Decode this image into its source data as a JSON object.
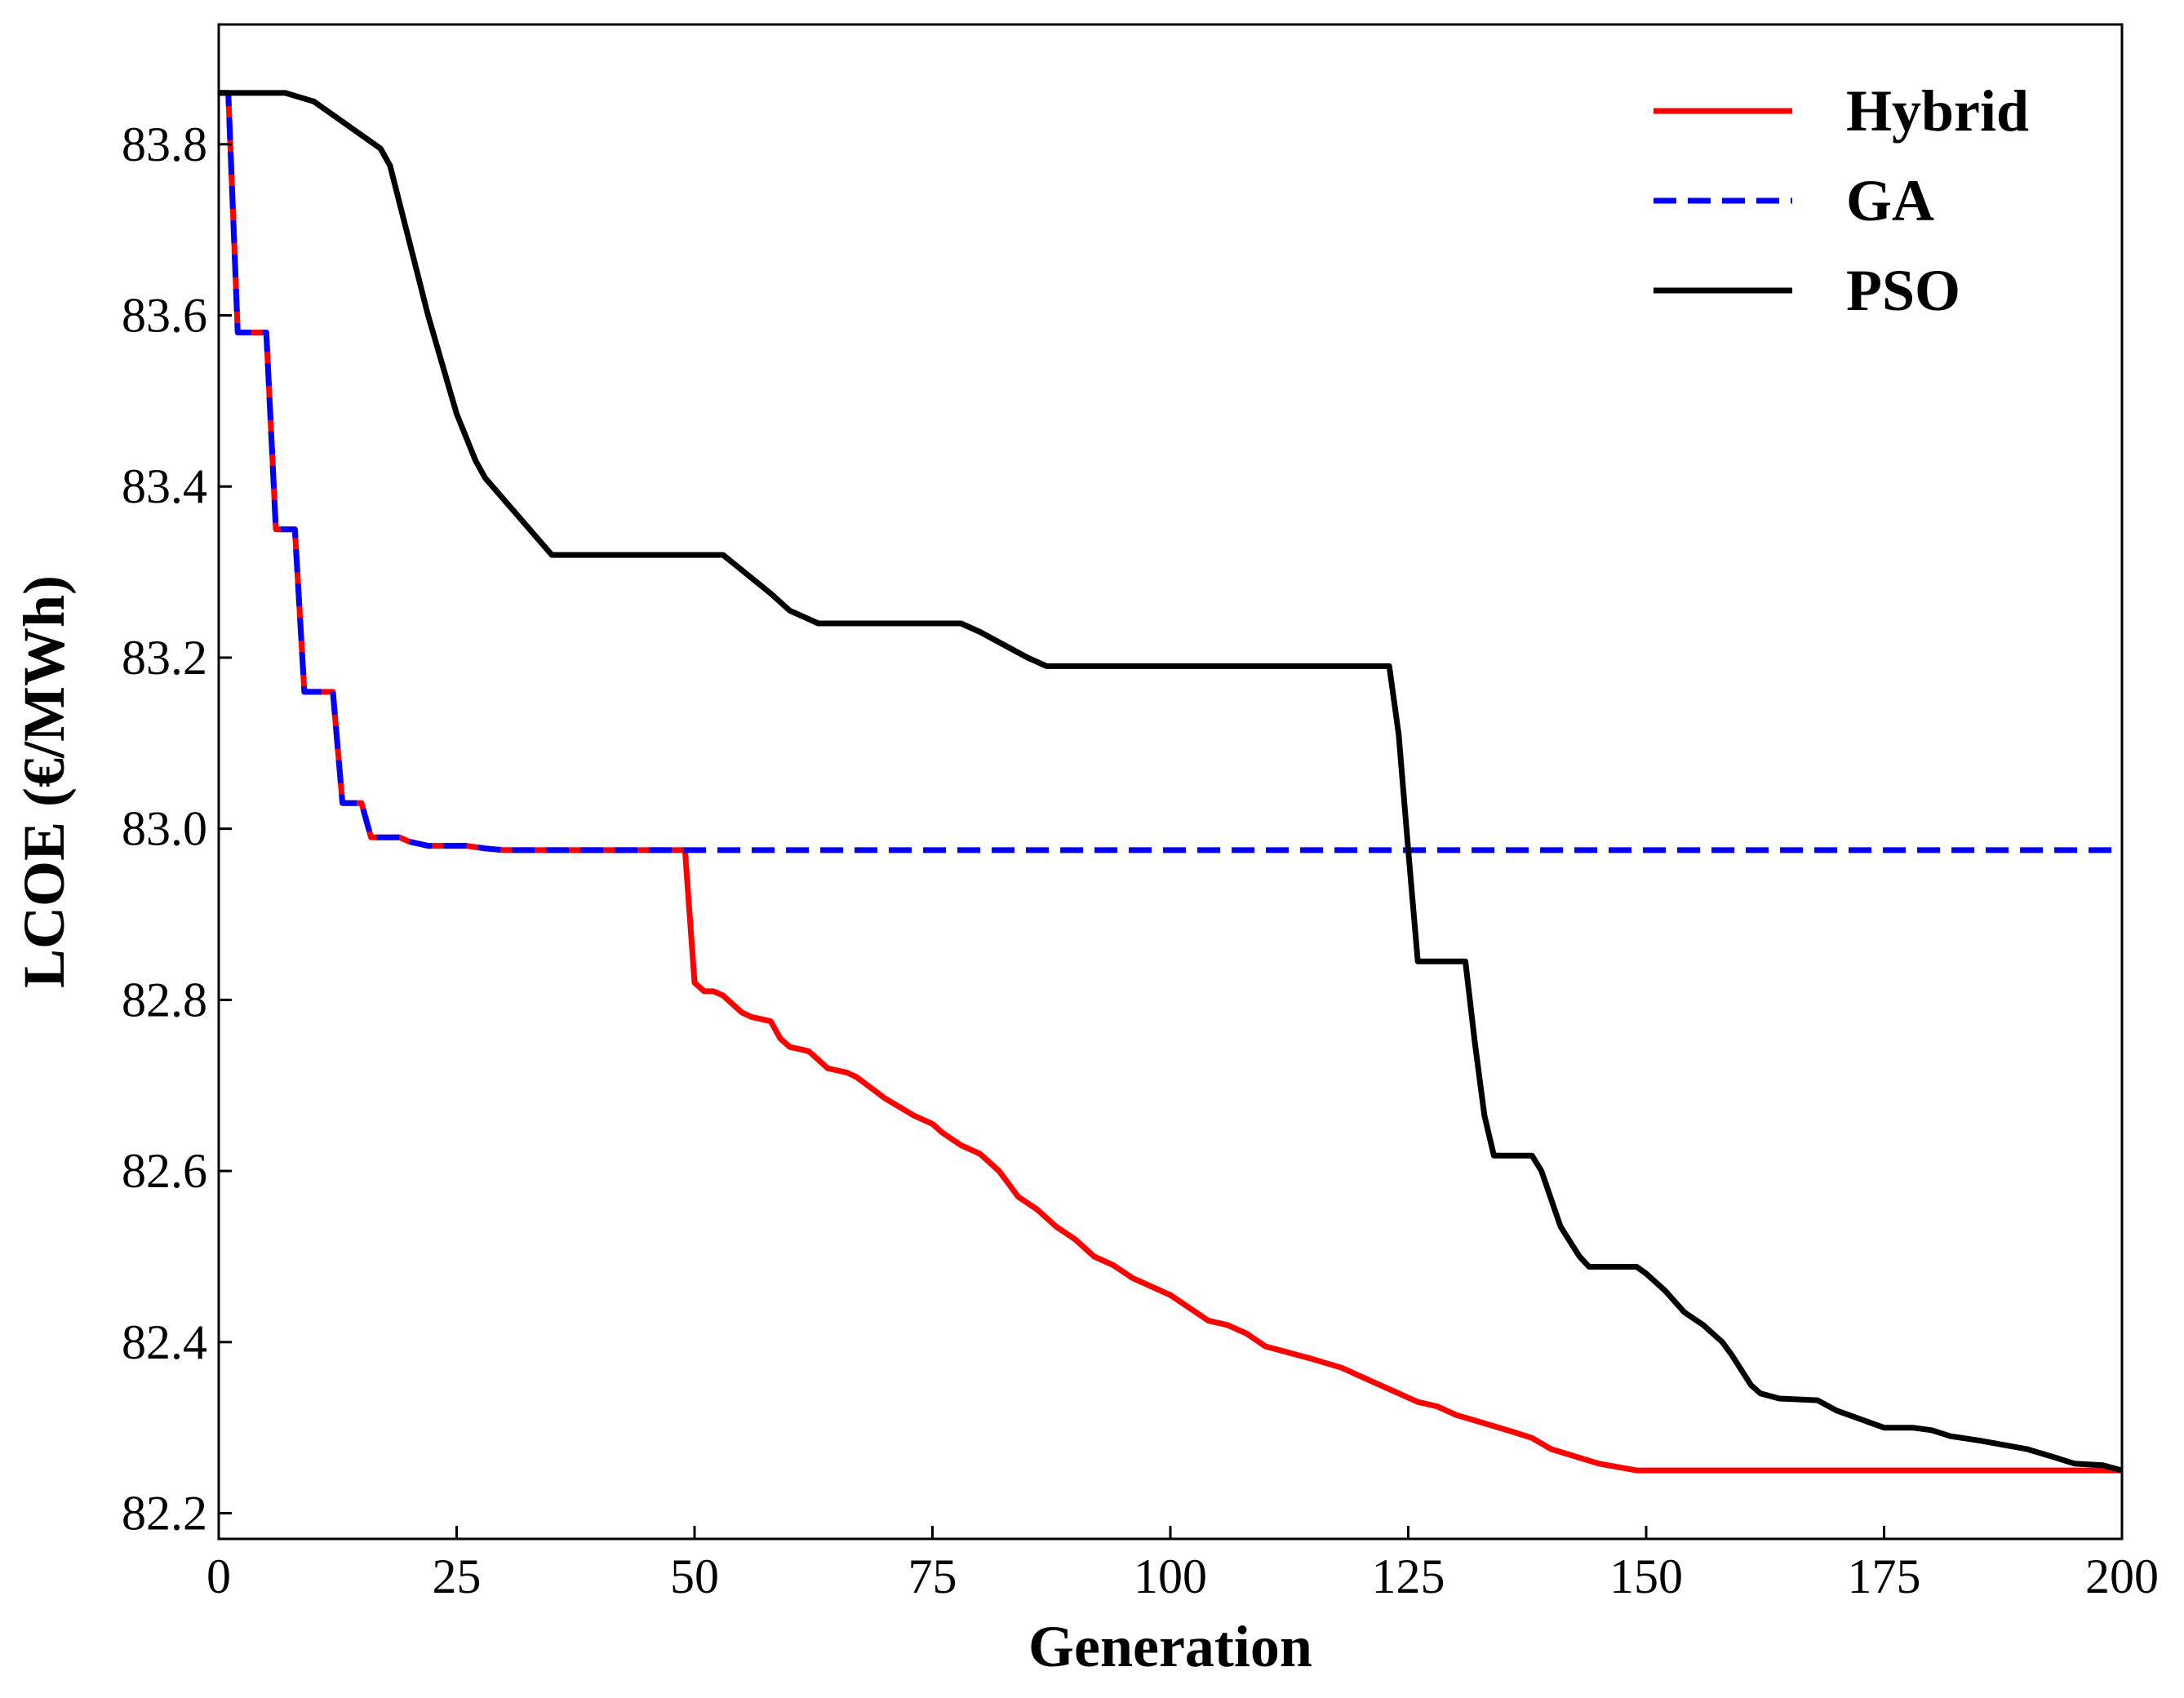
{
  "chart_data": {
    "type": "line",
    "xlabel": "Generation",
    "ylabel": "LCOE (€/MWh)",
    "xlim": [
      0,
      200
    ],
    "ylim": [
      82.17,
      83.94
    ],
    "xticks": [
      0,
      25,
      50,
      75,
      100,
      125,
      150,
      175,
      200
    ],
    "xtick_labels": [
      "0",
      "25",
      "50",
      "75",
      "100",
      "125",
      "150",
      "175",
      "200"
    ],
    "yticks": [
      82.2,
      82.4,
      82.6,
      82.8,
      83.0,
      83.2,
      83.4,
      83.6,
      83.8
    ],
    "ytick_labels": [
      "82.2",
      "82.4",
      "82.6",
      "82.8",
      "83.0",
      "83.2",
      "83.4",
      "83.6",
      "83.8"
    ],
    "grid": false,
    "legend_position": "top-right",
    "colors": {
      "Hybrid": "#ff0000",
      "GA": "#0000ff",
      "PSO": "#000000"
    },
    "series": [
      {
        "name": "Hybrid",
        "style": "solid",
        "points": [
          [
            0,
            83.86
          ],
          [
            1,
            83.86
          ],
          [
            2,
            83.58
          ],
          [
            5,
            83.58
          ],
          [
            6,
            83.35
          ],
          [
            8,
            83.35
          ],
          [
            9,
            83.16
          ],
          [
            12,
            83.16
          ],
          [
            13,
            83.03
          ],
          [
            15,
            83.03
          ],
          [
            16,
            82.99
          ],
          [
            19,
            82.99
          ],
          [
            20,
            82.985
          ],
          [
            22,
            82.98
          ],
          [
            26,
            82.98
          ],
          [
            28,
            82.977
          ],
          [
            30,
            82.975
          ],
          [
            49,
            82.975
          ],
          [
            50,
            82.82
          ],
          [
            51,
            82.81
          ],
          [
            52,
            82.81
          ],
          [
            53,
            82.805
          ],
          [
            54,
            82.795
          ],
          [
            55,
            82.785
          ],
          [
            56,
            82.78
          ],
          [
            58,
            82.775
          ],
          [
            59,
            82.755
          ],
          [
            60,
            82.745
          ],
          [
            62,
            82.74
          ],
          [
            63,
            82.73
          ],
          [
            64,
            82.72
          ],
          [
            66,
            82.715
          ],
          [
            67,
            82.71
          ],
          [
            70,
            82.685
          ],
          [
            73,
            82.665
          ],
          [
            75,
            82.655
          ],
          [
            76,
            82.645
          ],
          [
            78,
            82.63
          ],
          [
            80,
            82.62
          ],
          [
            82,
            82.6
          ],
          [
            83,
            82.585
          ],
          [
            84,
            82.57
          ],
          [
            86,
            82.555
          ],
          [
            88,
            82.535
          ],
          [
            90,
            82.52
          ],
          [
            92,
            82.5
          ],
          [
            94,
            82.49
          ],
          [
            96,
            82.475
          ],
          [
            98,
            82.465
          ],
          [
            100,
            82.455
          ],
          [
            102,
            82.44
          ],
          [
            104,
            82.425
          ],
          [
            106,
            82.42
          ],
          [
            108,
            82.41
          ],
          [
            110,
            82.395
          ],
          [
            115,
            82.38
          ],
          [
            118,
            82.37
          ],
          [
            120,
            82.36
          ],
          [
            122,
            82.35
          ],
          [
            124,
            82.34
          ],
          [
            126,
            82.33
          ],
          [
            128,
            82.325
          ],
          [
            130,
            82.315
          ],
          [
            133,
            82.305
          ],
          [
            136,
            82.295
          ],
          [
            138,
            82.288
          ],
          [
            140,
            82.275
          ],
          [
            145,
            82.258
          ],
          [
            149,
            82.25
          ],
          [
            200,
            82.25
          ]
        ]
      },
      {
        "name": "GA",
        "style": "dashed",
        "points": [
          [
            0,
            83.86
          ],
          [
            1,
            83.86
          ],
          [
            2,
            83.58
          ],
          [
            5,
            83.58
          ],
          [
            6,
            83.35
          ],
          [
            8,
            83.35
          ],
          [
            9,
            83.16
          ],
          [
            12,
            83.16
          ],
          [
            13,
            83.03
          ],
          [
            15,
            83.03
          ],
          [
            16,
            82.99
          ],
          [
            19,
            82.99
          ],
          [
            20,
            82.985
          ],
          [
            22,
            82.98
          ],
          [
            26,
            82.98
          ],
          [
            28,
            82.977
          ],
          [
            30,
            82.975
          ],
          [
            200,
            82.975
          ]
        ]
      },
      {
        "name": "PSO",
        "style": "solid",
        "points": [
          [
            0,
            83.86
          ],
          [
            7,
            83.86
          ],
          [
            10,
            83.85
          ],
          [
            17,
            83.795
          ],
          [
            18,
            83.775
          ],
          [
            22,
            83.6
          ],
          [
            25,
            83.485
          ],
          [
            27,
            83.43
          ],
          [
            28,
            83.41
          ],
          [
            35,
            83.32
          ],
          [
            53,
            83.32
          ],
          [
            58,
            83.275
          ],
          [
            60,
            83.255
          ],
          [
            63,
            83.24
          ],
          [
            78,
            83.24
          ],
          [
            80,
            83.23
          ],
          [
            85,
            83.2
          ],
          [
            87,
            83.19
          ],
          [
            123,
            83.19
          ],
          [
            124,
            83.11
          ],
          [
            125,
            82.975
          ],
          [
            126,
            82.845
          ],
          [
            131,
            82.845
          ],
          [
            132,
            82.75
          ],
          [
            133,
            82.665
          ],
          [
            134,
            82.618
          ],
          [
            138,
            82.618
          ],
          [
            139,
            82.6
          ],
          [
            141,
            82.535
          ],
          [
            143,
            82.5
          ],
          [
            144,
            82.488
          ],
          [
            149,
            82.488
          ],
          [
            150,
            82.48
          ],
          [
            152,
            82.46
          ],
          [
            154,
            82.435
          ],
          [
            156,
            82.42
          ],
          [
            158,
            82.4
          ],
          [
            159,
            82.385
          ],
          [
            161,
            82.35
          ],
          [
            162,
            82.34
          ],
          [
            164,
            82.334
          ],
          [
            168,
            82.332
          ],
          [
            170,
            82.32
          ],
          [
            172,
            82.312
          ],
          [
            175,
            82.3
          ],
          [
            178,
            82.3
          ],
          [
            180,
            82.297
          ],
          [
            182,
            82.29
          ],
          [
            185,
            82.285
          ],
          [
            190,
            82.275
          ],
          [
            193,
            82.265
          ],
          [
            195,
            82.258
          ],
          [
            198,
            82.256
          ],
          [
            200,
            82.25
          ]
        ]
      }
    ]
  }
}
